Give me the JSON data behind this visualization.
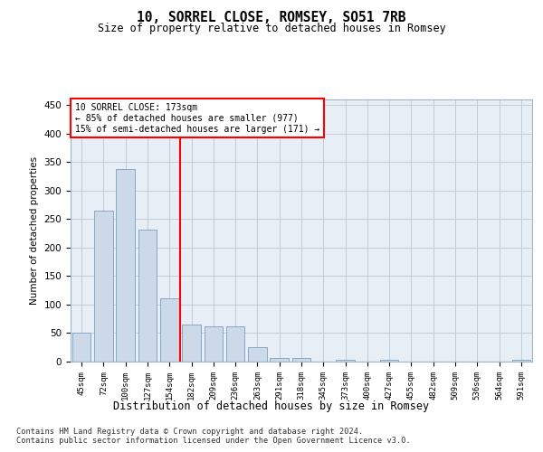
{
  "title": "10, SORREL CLOSE, ROMSEY, SO51 7RB",
  "subtitle": "Size of property relative to detached houses in Romsey",
  "xlabel": "Distribution of detached houses by size in Romsey",
  "ylabel": "Number of detached properties",
  "bar_color": "#ccd9e8",
  "bar_edge_color": "#7aa0c0",
  "background_color": "#ffffff",
  "plot_bg_color": "#e8eef5",
  "grid_color": "#c0cdd8",
  "categories": [
    "45sqm",
    "72sqm",
    "100sqm",
    "127sqm",
    "154sqm",
    "182sqm",
    "209sqm",
    "236sqm",
    "263sqm",
    "291sqm",
    "318sqm",
    "345sqm",
    "373sqm",
    "400sqm",
    "427sqm",
    "455sqm",
    "482sqm",
    "509sqm",
    "536sqm",
    "564sqm",
    "591sqm"
  ],
  "values": [
    50,
    265,
    338,
    232,
    111,
    65,
    62,
    62,
    25,
    7,
    7,
    0,
    3,
    0,
    3,
    0,
    0,
    0,
    0,
    0,
    3
  ],
  "red_line_index": 5,
  "annotation_title": "10 SORREL CLOSE: 173sqm",
  "annotation_line1": "← 85% of detached houses are smaller (977)",
  "annotation_line2": "15% of semi-detached houses are larger (171) →",
  "ylim": [
    0,
    460
  ],
  "yticks": [
    0,
    50,
    100,
    150,
    200,
    250,
    300,
    350,
    400,
    450
  ],
  "footnote1": "Contains HM Land Registry data © Crown copyright and database right 2024.",
  "footnote2": "Contains public sector information licensed under the Open Government Licence v3.0."
}
